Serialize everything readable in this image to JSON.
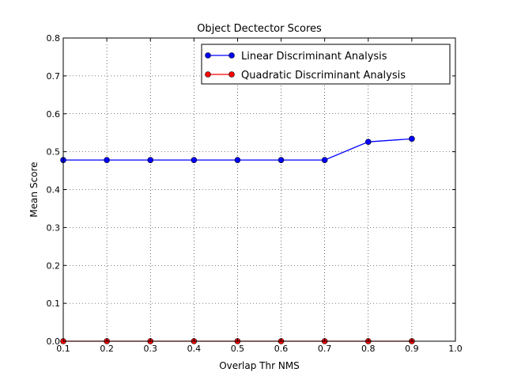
{
  "chart_data": {
    "type": "line",
    "title": "Object Dectector Scores",
    "xlabel": "Overlap Thr NMS",
    "ylabel": "Mean Score",
    "xlim": [
      0.1,
      1.0
    ],
    "ylim": [
      0.0,
      0.8
    ],
    "x_ticks": [
      "0.1",
      "0.2",
      "0.3",
      "0.4",
      "0.5",
      "0.6",
      "0.7",
      "0.8",
      "0.9",
      "1.0"
    ],
    "y_ticks": [
      "0.0",
      "0.1",
      "0.2",
      "0.3",
      "0.4",
      "0.5",
      "0.6",
      "0.7",
      "0.8"
    ],
    "grid": true,
    "legend_position": "top-right",
    "x": [
      0.1,
      0.2,
      0.3,
      0.4,
      0.5,
      0.6,
      0.7,
      0.8,
      0.9
    ],
    "series": [
      {
        "name": "Linear Discriminant Analysis",
        "color": "#0000ff",
        "values": [
          0.478,
          0.478,
          0.478,
          0.478,
          0.478,
          0.478,
          0.478,
          0.526,
          0.534
        ]
      },
      {
        "name": "Quadratic Discriminant Analysis",
        "color": "#ff0000",
        "values": [
          0.0,
          0.0,
          0.0,
          0.0,
          0.0,
          0.0,
          0.0,
          0.0,
          0.0
        ]
      }
    ]
  }
}
